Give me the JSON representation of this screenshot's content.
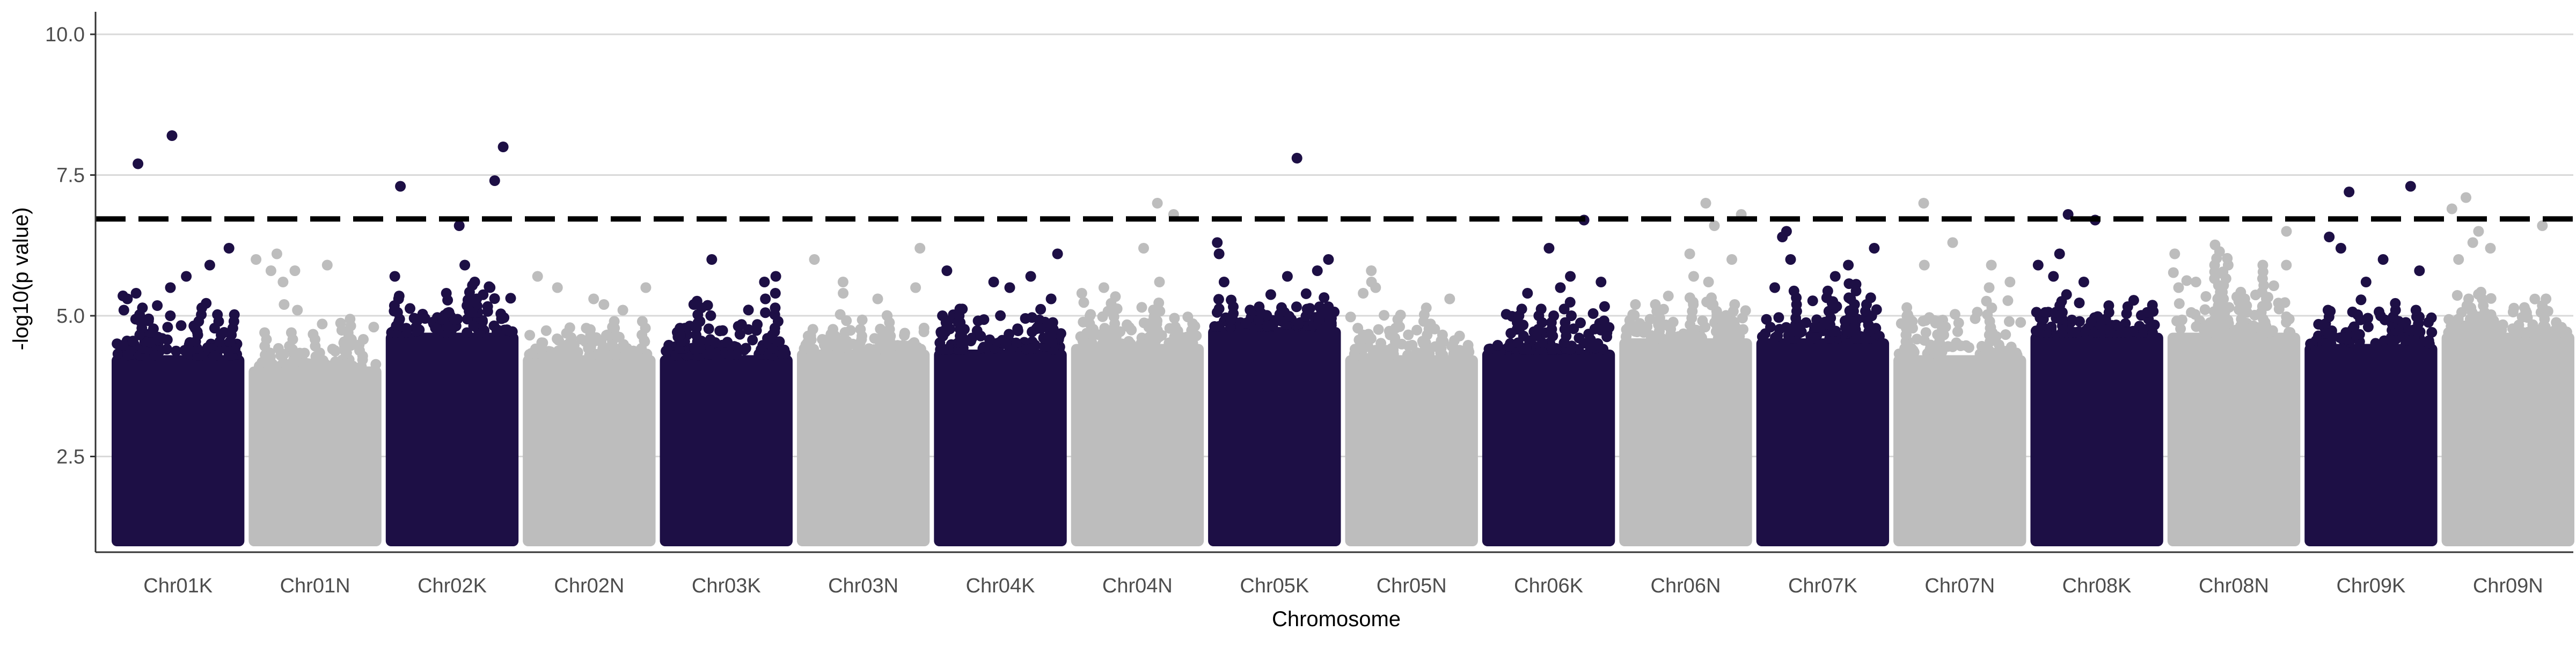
{
  "chart_data": {
    "type": "scatter",
    "subtype": "manhattan",
    "title": "",
    "xlabel": "Chromosome",
    "ylabel": "-log10(p value)",
    "ylim": [
      0.8,
      10.4
    ],
    "yticks": [
      {
        "value": 2.5,
        "label": "2.5"
      },
      {
        "value": 5.0,
        "label": "5.0"
      },
      {
        "value": 7.5,
        "label": "7.5"
      },
      {
        "value": 10.0,
        "label": "10.0"
      }
    ],
    "grid": "horizontal major lines",
    "threshold": {
      "value": 6.72,
      "style": "dashed",
      "color": "#000000"
    },
    "point_min": 1.0,
    "colors": {
      "odd": "#1d0f45",
      "even": "#bdbdbd",
      "grid": "#d9d9d9",
      "axis": "#333333"
    },
    "chromosomes": [
      {
        "label": "Chr01K",
        "dense_top": 4.3,
        "cloud_max": 5.4,
        "outliers": [
          6.2,
          7.7,
          8.2,
          5.9,
          5.7,
          5.5,
          5.4,
          5.3,
          5.1,
          5.0
        ]
      },
      {
        "label": "Chr01N",
        "dense_top": 4.1,
        "cloud_max": 5.0,
        "outliers": [
          5.8,
          6.0,
          6.1,
          5.8,
          5.9,
          5.6,
          5.2,
          5.1
        ]
      },
      {
        "label": "Chr02K",
        "dense_top": 4.7,
        "cloud_max": 5.6,
        "outliers": [
          6.6,
          8.0,
          7.4,
          7.3,
          5.9,
          5.7,
          5.6,
          5.4
        ]
      },
      {
        "label": "Chr02N",
        "dense_top": 4.3,
        "cloud_max": 5.0,
        "outliers": [
          5.7,
          5.5,
          5.5,
          5.3,
          5.2,
          5.1
        ]
      },
      {
        "label": "Chr03K",
        "dense_top": 4.3,
        "cloud_max": 5.3,
        "outliers": [
          6.0,
          5.7,
          5.6,
          5.4,
          5.3,
          5.2
        ]
      },
      {
        "label": "Chr03N",
        "dense_top": 4.4,
        "cloud_max": 5.2,
        "outliers": [
          6.0,
          6.2,
          5.6,
          5.5,
          5.4,
          5.3
        ]
      },
      {
        "label": "Chr04K",
        "dense_top": 4.4,
        "cloud_max": 5.3,
        "outliers": [
          6.1,
          5.8,
          5.7,
          5.6,
          5.5,
          5.3
        ]
      },
      {
        "label": "Chr04N",
        "dense_top": 4.5,
        "cloud_max": 5.4,
        "outliers": [
          6.8,
          7.0,
          6.2,
          5.6,
          5.5,
          5.4
        ]
      },
      {
        "label": "Chr05K",
        "dense_top": 4.8,
        "cloud_max": 5.5,
        "outliers": [
          7.8,
          6.3,
          6.1,
          6.0,
          5.8,
          5.7,
          5.6
        ]
      },
      {
        "label": "Chr05N",
        "dense_top": 4.3,
        "cloud_max": 5.2,
        "outliers": [
          5.8,
          5.6,
          5.5,
          5.4,
          5.3
        ]
      },
      {
        "label": "Chr06K",
        "dense_top": 4.4,
        "cloud_max": 5.3,
        "outliers": [
          6.7,
          6.2,
          5.7,
          5.6,
          5.5,
          5.4
        ]
      },
      {
        "label": "Chr06N",
        "dense_top": 4.6,
        "cloud_max": 5.5,
        "outliers": [
          7.0,
          6.8,
          6.6,
          6.1,
          6.0,
          5.7,
          5.6
        ]
      },
      {
        "label": "Chr07K",
        "dense_top": 4.6,
        "cloud_max": 5.6,
        "outliers": [
          6.5,
          6.4,
          6.2,
          6.0,
          5.9,
          5.7,
          5.5,
          5.3
        ]
      },
      {
        "label": "Chr07N",
        "dense_top": 4.3,
        "cloud_max": 5.4,
        "outliers": [
          7.0,
          6.3,
          5.9,
          5.9,
          5.6,
          5.5
        ]
      },
      {
        "label": "Chr08K",
        "dense_top": 4.7,
        "cloud_max": 5.5,
        "outliers": [
          6.8,
          6.7,
          6.1,
          5.9,
          5.7,
          5.6
        ]
      },
      {
        "label": "Chr08N",
        "dense_top": 4.7,
        "cloud_max": 6.3,
        "outliers": [
          6.5,
          6.1,
          5.9,
          5.6,
          5.5
        ]
      },
      {
        "label": "Chr09K",
        "dense_top": 4.5,
        "cloud_max": 5.4,
        "outliers": [
          7.3,
          7.2,
          6.4,
          6.2,
          6.0,
          5.8,
          5.6
        ]
      },
      {
        "label": "Chr09N",
        "dense_top": 4.7,
        "cloud_max": 5.6,
        "outliers": [
          7.1,
          6.9,
          6.6,
          6.5,
          6.3,
          6.2,
          6.0
        ]
      }
    ]
  }
}
